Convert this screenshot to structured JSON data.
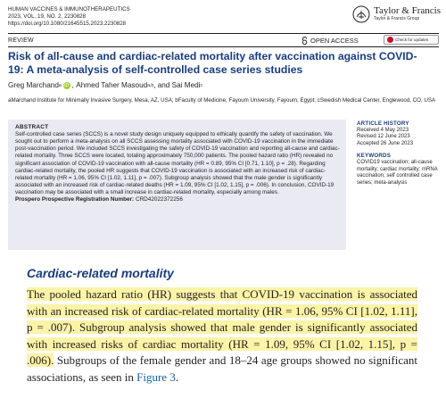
{
  "journal": {
    "name": "HUMAN VACCINES & IMMUNOTHERAPEUTICS",
    "volume": "2023, VOL. 19, NO. 2, 2230828",
    "doi": "https://doi.org/10.1080/21645515.2023.2230828"
  },
  "publisher": {
    "name": "Taylor & Francis",
    "group": "Taylor & Francis Group"
  },
  "article_type": "REVIEW",
  "open_access_label": "OPEN ACCESS",
  "check_updates_label": "Check for updates",
  "title": "Risk of all-cause and cardiac-related mortality after vaccination against COVID-19: A meta-analysis of self-controlled case series studies",
  "authors": [
    {
      "name": "Greg Marchand",
      "sup": "a",
      "orcid": true
    },
    {
      "name": "Ahmed Taher Masoud",
      "sup": "a,b",
      "orcid": false
    },
    {
      "name": "Sai Medi",
      "sup": "c",
      "orcid": false
    }
  ],
  "affiliations": "aMarchand Institute for Minimally Invasive Surgery, Mesa, AZ, USA; bFaculty of Medicine, Fayoum University, Fayoum, Egypt; cSwedish Medical Center, Englewood, CO, USA",
  "abstract": {
    "heading": "ABSTRACT",
    "text": "Self-controlled case series (SCCS) is a novel study design uniquely equipped to ethically quantify the safety of vaccination. We sought out to perform a meta-analysis on all SCCS assessing mortality associated with COVID-19 vaccination in the immediate post-vaccination period. We included SCCS investigating the safety of COVID-19 vaccination and reporting all-cause and cardiac-related mortality. Three SCCS were located, totaling approximately 750,000 patients. The pooled hazard ratio (HR) revealed no significant association of COVID-19 vaccination with all-cause mortality (HR = 0.89, 95% CI [0.71, 1.10], p = .28). Regarding cardiac-related mortality, the pooled HR suggests that COVID-19 vaccination is associated with an increased risk of cardiac-related mortality (HR = 1.06, 95% CI [1.02, 1.11], p = .007). Subgroup analysis showed that the male gender is significantly associated with an increased risk of cardiac-related deaths (HR = 1.09, 95% CI [1.02, 1.15], p = .006). In conclusion, COVID-19 vaccination may be associated with a small increase in cardiac-related mortality, especially among males.",
    "prospero_label": "Prospero Prospective Registration Number:",
    "prospero_number": "CRD42022372256"
  },
  "article_history": {
    "heading": "ARTICLE HISTORY",
    "received": "Received 4 May 2023",
    "revised": "Revised 12 June 2023",
    "accepted": "Accepted 26 June 2023"
  },
  "keywords": {
    "heading": "KEYWORDS",
    "text": "COVID19 vaccination; all-cause mortality; cardiac mortality; mRNA vaccination; self controlled case series; meta-analysis"
  },
  "section": {
    "heading": "Cardiac-related mortality",
    "highlighted_text": "The pooled hazard ratio (HR) suggests that COVID-19 vaccination is associated with an increased risk of cardiac-related mortality (HR = 1.06, 95% CI [1.02, 1.11], p = .007). Subgroup analysis showed that male gender is significantly associated with increased risks of cardiac mortality (HR = 1.09, 95% CI [1.02, 1.15], p = .006).",
    "rest_text": " Subgroups of the female gender and 18–24 age groups showed no significant associations, as seen in ",
    "figure_link": "Figure 3",
    "end": "."
  },
  "colors": {
    "title": "#1a3d7c",
    "abstract_bg": "#e9eaf2",
    "highlight": "#fbf3a7",
    "link": "#1a5ea8"
  }
}
